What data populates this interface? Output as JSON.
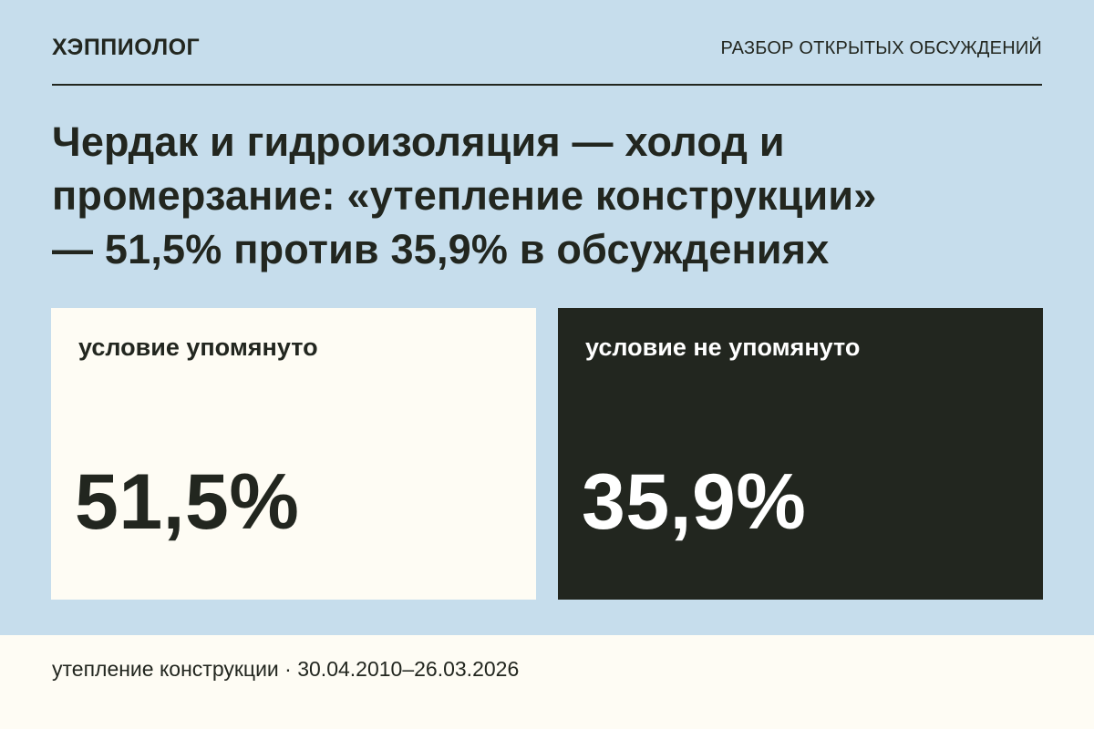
{
  "header": {
    "brand": "ХЭППИОЛОГ",
    "section_label": "РАЗБОР ОТКРЫТЫХ ОБСУЖДЕНИЙ"
  },
  "headline": {
    "line1": "Чердак и гидроизоляция — холод и",
    "line2": "промерзание: «утепление конструкции»",
    "line3": "— 51,5% против 35,9% в обсуждениях"
  },
  "cards": {
    "mentioned": {
      "label": "условие упомянуто",
      "value": "51,5%"
    },
    "not_mentioned": {
      "label": "условие не упомянуто",
      "value": "35,9%"
    }
  },
  "footer": {
    "text": "утепление конструкции · 30.04.2010–26.03.2026"
  },
  "colors": {
    "background": "#c6ddec",
    "light_card": "#fefcf4",
    "dark_card": "#22261f",
    "text_dark": "#22261f",
    "text_light": "#ffffff"
  }
}
